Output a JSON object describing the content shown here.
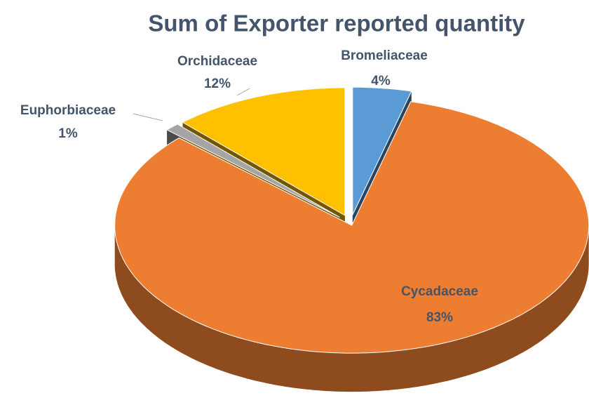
{
  "chart_data": {
    "type": "pie3d",
    "title": "Sum of Exporter reported quantity",
    "categories": [
      "Bromeliaceae",
      "Cycadaceae",
      "Euphorbiaceae",
      "Orchidaceae"
    ],
    "values": [
      4,
      83,
      1,
      12
    ],
    "value_labels": [
      "4%",
      "83%",
      "1%",
      "12%"
    ],
    "colors": [
      "#5b9bd5",
      "#ed7d31",
      "#a5a5a5",
      "#ffc000"
    ]
  }
}
